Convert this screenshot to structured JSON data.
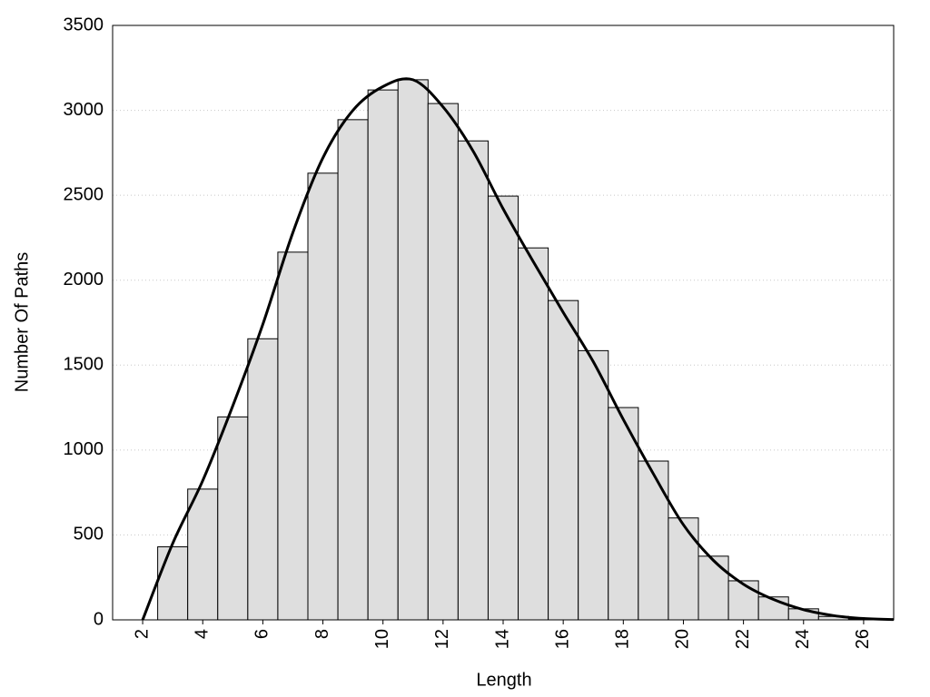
{
  "chart_data": {
    "type": "histogram",
    "x_label": "Length",
    "y_label": "Number Of Paths",
    "bins": [
      2.5,
      3.5,
      4.5,
      5.5,
      6.5,
      7.5,
      8.5,
      9.5,
      10.5,
      11.5,
      12.5,
      13.5,
      14.5,
      15.5,
      16.5,
      17.5,
      18.5,
      19.5,
      20.5,
      21.5,
      22.5,
      23.5,
      24.5,
      25.5,
      26.5
    ],
    "values": [
      430,
      770,
      1195,
      1655,
      2165,
      2630,
      2945,
      3120,
      3180,
      3040,
      2820,
      2495,
      2190,
      1880,
      1585,
      1250,
      935,
      600,
      375,
      230,
      135,
      65,
      20,
      5
    ],
    "color": "#dedede",
    "curve": {
      "x": [
        2,
        3,
        4,
        5,
        6,
        7,
        8,
        9,
        10,
        11,
        12,
        13,
        14,
        15,
        16,
        17,
        18,
        19,
        20,
        21,
        22,
        23,
        24,
        25,
        26,
        27
      ],
      "values": [
        0,
        450,
        820,
        1260,
        1740,
        2280,
        2720,
        3000,
        3140,
        3180,
        3020,
        2760,
        2420,
        2110,
        1810,
        1520,
        1180,
        860,
        560,
        350,
        210,
        120,
        60,
        25,
        8,
        2
      ],
      "color": "#000000"
    },
    "xlim": [
      1,
      27
    ],
    "xticks": [
      2,
      4,
      6,
      8,
      10,
      12,
      14,
      16,
      18,
      20,
      22,
      24,
      26
    ],
    "ylim": [
      0,
      3500
    ],
    "yticks": [
      0,
      500,
      1000,
      1500,
      2000,
      2500,
      3000,
      3500
    ],
    "grid": true
  }
}
